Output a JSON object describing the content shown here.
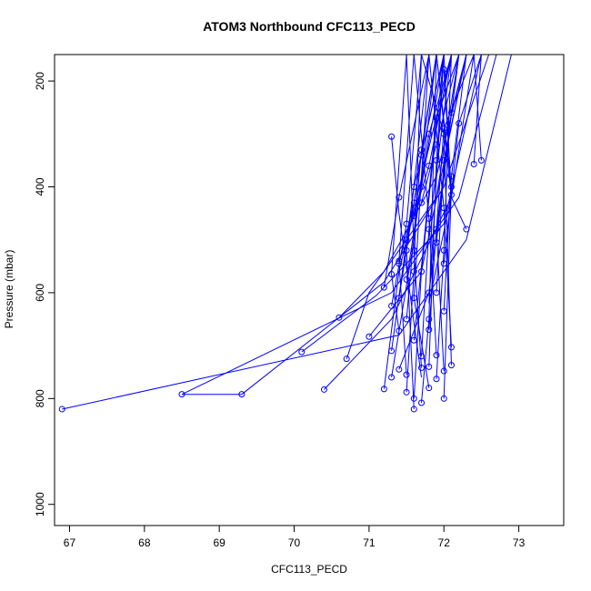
{
  "chart_data": {
    "type": "line",
    "title": "ATOM3 Northbound CFC113_PECD",
    "xlabel": "CFC113_PECD",
    "ylabel": "Pressure (mbar)",
    "xlim": [
      66.8,
      73.6
    ],
    "ylim": [
      1040,
      150
    ],
    "y_axis_reversed": true,
    "grid": false,
    "legend": "none",
    "marker": "open-circle",
    "color": "#0000ff",
    "x_ticks": [
      "67",
      "68",
      "69",
      "70",
      "71",
      "72",
      "73"
    ],
    "x_tick_values": [
      67,
      68,
      69,
      70,
      71,
      72,
      73
    ],
    "y_ticks": [
      "200",
      "400",
      "600",
      "800",
      "1000"
    ],
    "y_tick_values": [
      200,
      400,
      600,
      800,
      1000
    ],
    "series": [
      {
        "x": [
          66.9,
          71.4,
          72.3,
          72.9
        ],
        "y": [
          820,
          680,
          500,
          150
        ],
        "markers": [
          true,
          false,
          false,
          false
        ]
      },
      {
        "x": [
          68.5,
          69.3
        ],
        "y": [
          792,
          792
        ],
        "markers": [
          true,
          true
        ]
      },
      {
        "x": [
          68.5,
          71.3,
          72.2,
          72.7
        ],
        "y": [
          792,
          600,
          420,
          150
        ],
        "markers": [
          false,
          false,
          false,
          false
        ]
      },
      {
        "x": [
          69.3,
          71.2,
          72.0,
          72.6
        ],
        "y": [
          792,
          580,
          400,
          150
        ],
        "markers": [
          false,
          false,
          false,
          false
        ]
      },
      {
        "x": [
          70.1,
          71.1,
          72.0,
          72.5
        ],
        "y": [
          712,
          605,
          470,
          150
        ],
        "markers": [
          true,
          false,
          false,
          false
        ]
      },
      {
        "x": [
          70.4,
          71.3,
          72.1,
          72.4
        ],
        "y": [
          783,
          650,
          420,
          150
        ],
        "markers": [
          true,
          false,
          false,
          false
        ]
      },
      {
        "x": [
          70.6,
          71.2,
          71.9,
          72.3
        ],
        "y": [
          647,
          560,
          380,
          150
        ],
        "markers": [
          true,
          false,
          false,
          false
        ]
      },
      {
        "x": [
          70.7,
          71.0,
          71.9,
          72.2
        ],
        "y": [
          725,
          600,
          420,
          150
        ],
        "markers": [
          true,
          false,
          false,
          false
        ]
      },
      {
        "x": [
          71.0,
          71.7,
          72.3
        ],
        "y": [
          683,
          560,
          150
        ],
        "markers": [
          true,
          false,
          false
        ]
      },
      {
        "x": [
          71.3,
          71.4,
          71.7
        ],
        "y": [
          305,
          450,
          760
        ],
        "markers": [
          true,
          false,
          false
        ]
      },
      {
        "x": [
          72.5,
          72.4
        ],
        "y": [
          350,
          150
        ],
        "markers": [
          true,
          false
        ]
      },
      {
        "x": [
          72.4,
          72.5,
          72.3
        ],
        "y": [
          357,
          150,
          150
        ],
        "markers": [
          true,
          false,
          false
        ]
      },
      {
        "x": [
          72.3,
          72.1,
          72.0
        ],
        "y": [
          480,
          420,
          150
        ],
        "markers": [
          true,
          false,
          false
        ]
      },
      {
        "x": [
          72.1,
          71.8,
          72.0
        ],
        "y": [
          415,
          620,
          150
        ],
        "markers": [
          true,
          false,
          false
        ]
      },
      {
        "x": [
          72.0,
          72.1,
          71.9
        ],
        "y": [
          178,
          420,
          150
        ],
        "markers": [
          true,
          false,
          false
        ]
      },
      {
        "x": [
          71.2,
          71.4,
          72.1
        ],
        "y": [
          782,
          560,
          150
        ],
        "markers": [
          true,
          false,
          false
        ]
      },
      {
        "x": [
          71.3,
          71.6,
          71.9
        ],
        "y": [
          760,
          500,
          150
        ],
        "markers": [
          true,
          false,
          false
        ]
      },
      {
        "x": [
          71.4,
          71.8,
          72.2
        ],
        "y": [
          745,
          600,
          150
        ],
        "markers": [
          true,
          true,
          false
        ]
      },
      {
        "x": [
          71.5,
          71.6,
          71.7
        ],
        "y": [
          788,
          560,
          150
        ],
        "markers": [
          true,
          true,
          false
        ]
      },
      {
        "x": [
          71.6,
          71.5,
          71.8
        ],
        "y": [
          820,
          520,
          150
        ],
        "markers": [
          true,
          true,
          false
        ]
      },
      {
        "x": [
          71.6,
          71.7,
          72.0
        ],
        "y": [
          800,
          560,
          150
        ],
        "markers": [
          true,
          true,
          false
        ]
      },
      {
        "x": [
          71.7,
          71.8,
          71.9
        ],
        "y": [
          808,
          650,
          150
        ],
        "markers": [
          true,
          true,
          false
        ]
      },
      {
        "x": [
          71.8,
          71.6,
          71.8
        ],
        "y": [
          780,
          610,
          150
        ],
        "markers": [
          true,
          true,
          false
        ]
      },
      {
        "x": [
          71.9,
          72.0,
          72.1
        ],
        "y": [
          763,
          520,
          150
        ],
        "markers": [
          true,
          true,
          false
        ]
      },
      {
        "x": [
          72.0,
          71.9,
          72.2
        ],
        "y": [
          748,
          480,
          150
        ],
        "markers": [
          true,
          true,
          false
        ]
      },
      {
        "x": [
          72.1,
          72.0,
          71.8
        ],
        "y": [
          703,
          440,
          150
        ],
        "markers": [
          true,
          true,
          false
        ]
      },
      {
        "x": [
          72.1,
          72.0,
          71.7
        ],
        "y": [
          737,
          300,
          150
        ],
        "markers": [
          true,
          true,
          false
        ]
      },
      {
        "x": [
          72.0,
          72.1,
          71.9
        ],
        "y": [
          800,
          400,
          150
        ],
        "markers": [
          true,
          true,
          false
        ]
      },
      {
        "x": [
          71.9,
          71.8,
          71.6
        ],
        "y": [
          718,
          460,
          150
        ],
        "markers": [
          true,
          true,
          false
        ]
      },
      {
        "x": [
          71.8,
          71.9,
          72.0
        ],
        "y": [
          740,
          350,
          150
        ],
        "markers": [
          true,
          true,
          false
        ]
      },
      {
        "x": [
          71.7,
          71.6,
          71.5
        ],
        "y": [
          742,
          520,
          150
        ],
        "markers": [
          true,
          true,
          false
        ]
      },
      {
        "x": [
          71.5,
          71.4,
          71.6
        ],
        "y": [
          755,
          540,
          150
        ],
        "markers": [
          true,
          true,
          false
        ]
      },
      {
        "x": [
          71.4,
          71.3,
          71.5
        ],
        "y": [
          672,
          565,
          150
        ],
        "markers": [
          true,
          true,
          false
        ]
      },
      {
        "x": [
          71.3,
          71.5,
          71.7
        ],
        "y": [
          625,
          470,
          150
        ],
        "markers": [
          true,
          true,
          false
        ]
      },
      {
        "x": [
          71.2,
          71.4,
          71.8
        ],
        "y": [
          590,
          420,
          150
        ],
        "markers": [
          true,
          true,
          false
        ]
      },
      {
        "x": [
          71.4,
          71.6,
          71.9
        ],
        "y": [
          545,
          430,
          150
        ],
        "markers": [
          true,
          true,
          false
        ]
      },
      {
        "x": [
          71.5,
          71.7,
          72.0
        ],
        "y": [
          500,
          400,
          150
        ],
        "markers": [
          true,
          true,
          false
        ]
      },
      {
        "x": [
          71.6,
          71.8,
          72.1
        ],
        "y": [
          455,
          360,
          150
        ],
        "markers": [
          true,
          true,
          false
        ]
      },
      {
        "x": [
          71.7,
          71.9,
          72.2
        ],
        "y": [
          430,
          320,
          150
        ],
        "markers": [
          true,
          true,
          false
        ]
      },
      {
        "x": [
          71.9,
          72.0,
          72.3
        ],
        "y": [
          600,
          350,
          150
        ],
        "markers": [
          true,
          true,
          false
        ]
      },
      {
        "x": [
          72.0,
          72.1,
          72.3
        ],
        "y": [
          635,
          380,
          150
        ],
        "markers": [
          true,
          true,
          false
        ]
      },
      {
        "x": [
          71.8,
          72.0,
          72.4
        ],
        "y": [
          670,
          290,
          150
        ],
        "markers": [
          true,
          true,
          false
        ]
      },
      {
        "x": [
          71.6,
          71.9,
          72.2
        ],
        "y": [
          690,
          270,
          150
        ],
        "markers": [
          true,
          true,
          false
        ]
      },
      {
        "x": [
          71.5,
          71.7,
          71.9
        ],
        "y": [
          650,
          330,
          150
        ],
        "markers": [
          true,
          true,
          false
        ]
      },
      {
        "x": [
          71.3,
          71.6,
          72.0
        ],
        "y": [
          710,
          400,
          150
        ],
        "markers": [
          true,
          true,
          false
        ]
      },
      {
        "x": [
          71.7,
          71.8,
          72.1
        ],
        "y": [
          720,
          480,
          150
        ],
        "markers": [
          true,
          true,
          false
        ]
      },
      {
        "x": [
          72.0,
          72.2,
          72.5
        ],
        "y": [
          545,
          280,
          150
        ],
        "markers": [
          true,
          true,
          false
        ]
      },
      {
        "x": [
          71.9,
          72.1,
          72.3
        ],
        "y": [
          505,
          260,
          150
        ],
        "markers": [
          true,
          true,
          false
        ]
      },
      {
        "x": [
          71.5,
          71.8,
          72.1
        ],
        "y": [
          575,
          300,
          150
        ],
        "markers": [
          true,
          true,
          false
        ]
      },
      {
        "x": [
          71.4,
          71.7,
          72.0
        ],
        "y": [
          610,
          340,
          150
        ],
        "markers": [
          true,
          true,
          false
        ]
      }
    ]
  }
}
